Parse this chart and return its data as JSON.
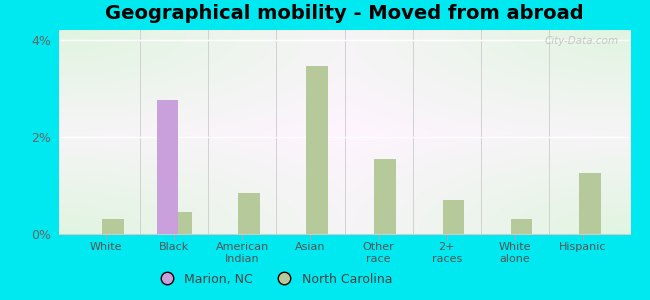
{
  "title": "Geographical mobility - Moved from abroad",
  "categories": [
    "White",
    "Black",
    "American\nIndian",
    "Asian",
    "Other\nrace",
    "2+\nraces",
    "White\nalone",
    "Hispanic"
  ],
  "marion_nc": [
    0.0,
    2.75,
    0.0,
    0.0,
    0.0,
    0.0,
    0.0,
    0.0
  ],
  "north_carolina": [
    0.3,
    0.45,
    0.85,
    3.45,
    1.55,
    0.7,
    0.3,
    1.25
  ],
  "marion_color": "#c9a0dc",
  "nc_color": "#b5c99a",
  "ylim": [
    0,
    4.2
  ],
  "yticks": [
    0,
    2,
    4
  ],
  "ytick_labels": [
    "0%",
    "2%",
    "4%"
  ],
  "outer_bg": "#00e8f0",
  "plot_bg": "#e8f5e4",
  "legend_marion": "Marion, NC",
  "legend_nc": "North Carolina",
  "bar_width": 0.4,
  "title_fontsize": 14,
  "watermark": "City-Data.com"
}
